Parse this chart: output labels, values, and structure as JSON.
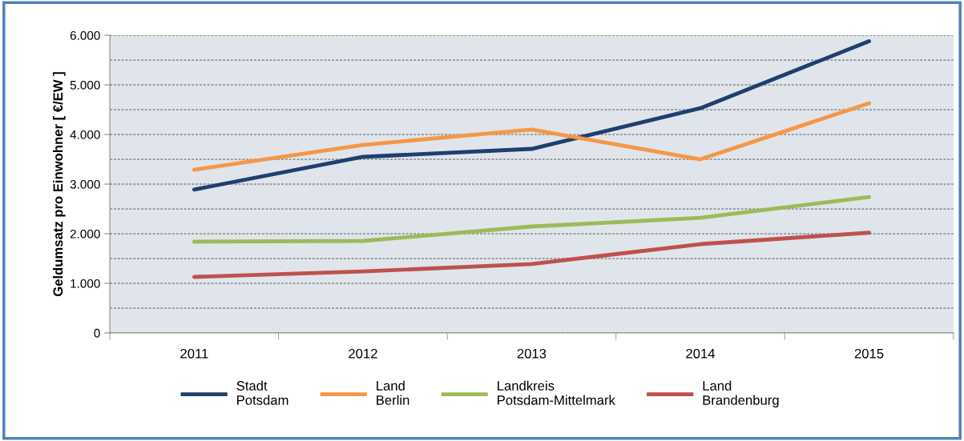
{
  "chart_data": {
    "type": "line",
    "ylabel": "Geldumsatz pro Einwohner [ €/EW ]",
    "categories": [
      "2011",
      "2012",
      "2013",
      "2014",
      "2015"
    ],
    "series": [
      {
        "name": "Stadt\nPotsdam",
        "color": "#1f3f6e",
        "values": [
          2890,
          3550,
          3710,
          4530,
          5880
        ]
      },
      {
        "name": "Land\nBerlin",
        "color": "#f79646",
        "values": [
          3290,
          3790,
          4100,
          3500,
          4630
        ]
      },
      {
        "name": "Landkreis\nPotsdam-Mittelmark",
        "color": "#9bbb59",
        "values": [
          1840,
          1855,
          2145,
          2320,
          2740
        ]
      },
      {
        "name": "Land\nBrandenburg",
        "color": "#c0504d",
        "values": [
          1130,
          1240,
          1390,
          1790,
          2020
        ]
      }
    ],
    "ylim": [
      0,
      6000
    ],
    "yticks": [
      0,
      {
        "value": 1000,
        "label": "1.000"
      },
      {
        "value": 2000,
        "label": "2.000"
      },
      {
        "value": 3000,
        "label": "3.000"
      },
      {
        "value": 4000,
        "label": "4.000"
      },
      {
        "value": 5000,
        "label": "5.000"
      },
      {
        "value": 6000,
        "label": "6.000"
      }
    ],
    "grid": "y",
    "legend": "bottom",
    "marker": "none",
    "line_style": "solid"
  }
}
